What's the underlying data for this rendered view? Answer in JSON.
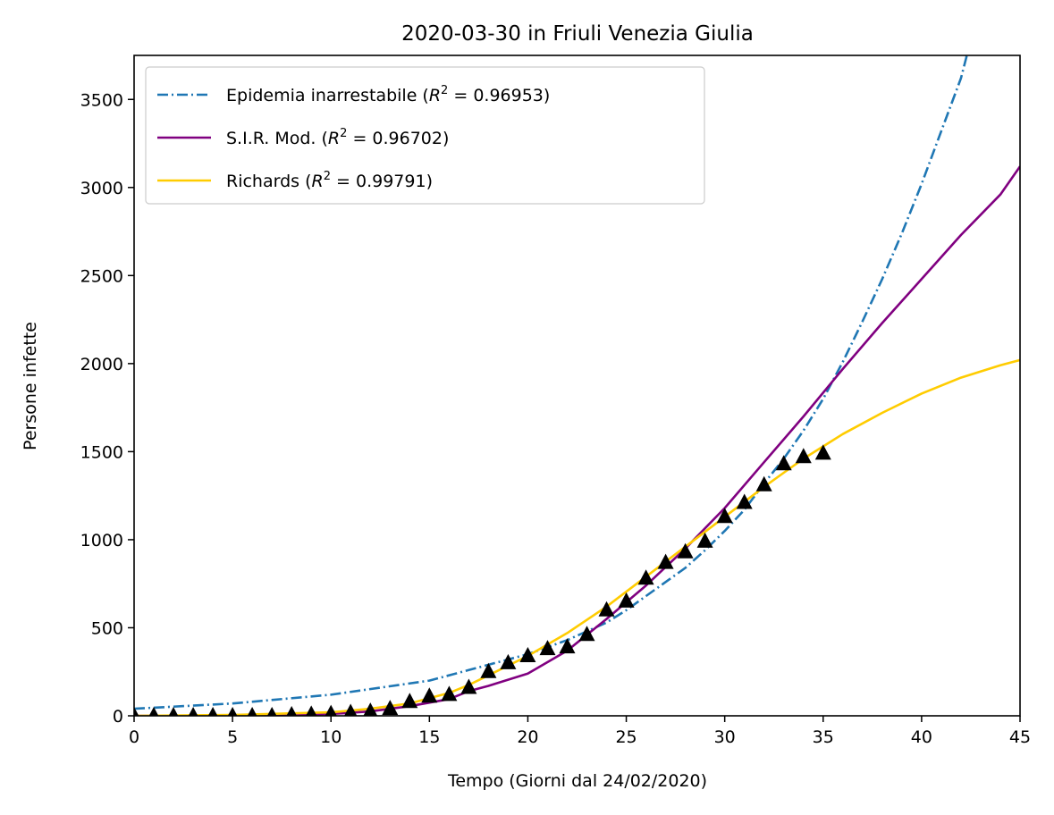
{
  "chart_data": {
    "type": "line",
    "title": "2020-03-30 in Friuli Venezia Giulia",
    "xlabel": "Tempo (Giorni dal 24/02/2020)",
    "ylabel": "Persone infette",
    "xlim": [
      0,
      45
    ],
    "ylim": [
      0,
      3750
    ],
    "x_ticks": [
      0,
      5,
      10,
      15,
      20,
      25,
      30,
      35,
      40,
      45
    ],
    "y_ticks": [
      0,
      500,
      1000,
      1500,
      2000,
      2500,
      3000,
      3500
    ],
    "grid": false,
    "legend_position": "upper-left",
    "series": [
      {
        "name": "Epidemia inarrestabile",
        "r2": "0.96953",
        "style": "dash-dot",
        "color": "#1f77b4",
        "x": [
          0,
          5,
          10,
          15,
          17,
          18,
          20,
          22,
          24,
          25,
          26,
          28,
          29,
          30,
          31,
          32,
          33,
          34,
          35,
          36,
          37,
          38,
          39,
          40,
          41,
          42,
          42.3
        ],
        "y": [
          40,
          70,
          120,
          200,
          260,
          290,
          350,
          430,
          530,
          600,
          680,
          840,
          940,
          1050,
          1170,
          1320,
          1460,
          1620,
          1800,
          2010,
          2240,
          2480,
          2740,
          3020,
          3320,
          3620,
          3750
        ]
      },
      {
        "name": "S.I.R. Mod.",
        "r2": "0.96702",
        "style": "solid",
        "color": "#800080",
        "x": [
          0,
          5,
          10,
          12,
          14,
          16,
          17,
          18,
          20,
          22,
          24,
          26,
          28,
          30,
          32,
          34,
          36,
          38,
          40,
          42,
          44,
          45
        ],
        "y": [
          0,
          2,
          10,
          25,
          55,
          95,
          140,
          170,
          240,
          370,
          550,
          740,
          950,
          1180,
          1440,
          1700,
          1970,
          2230,
          2480,
          2730,
          2960,
          3120
        ]
      },
      {
        "name": "Richards",
        "r2": "0.99791",
        "style": "solid",
        "color": "#ffcc00",
        "x": [
          0,
          5,
          10,
          12,
          14,
          15,
          16,
          17,
          18,
          20,
          22,
          24,
          26,
          28,
          30,
          32,
          33,
          34,
          35,
          36,
          38,
          40,
          42,
          44,
          45
        ],
        "y": [
          0,
          5,
          20,
          40,
          70,
          100,
          130,
          175,
          230,
          340,
          470,
          620,
          790,
          960,
          1130,
          1300,
          1380,
          1460,
          1530,
          1600,
          1720,
          1830,
          1920,
          1990,
          2020
        ]
      }
    ],
    "observed": {
      "marker": "triangle",
      "color": "#000000",
      "x": [
        0,
        1,
        2,
        3,
        4,
        5,
        6,
        7,
        8,
        9,
        10,
        11,
        12,
        13,
        14,
        15,
        16,
        17,
        18,
        19,
        20,
        21,
        22,
        23,
        24,
        25,
        26,
        27,
        28,
        29,
        30,
        31,
        32,
        33,
        34,
        35
      ],
      "y": [
        0,
        0,
        0,
        0,
        0,
        0,
        0,
        0,
        5,
        8,
        12,
        18,
        25,
        40,
        80,
        110,
        120,
        160,
        250,
        300,
        340,
        380,
        390,
        460,
        600,
        650,
        780,
        870,
        930,
        990,
        1130,
        1210,
        1310,
        1430,
        1470,
        1490
      ]
    }
  }
}
